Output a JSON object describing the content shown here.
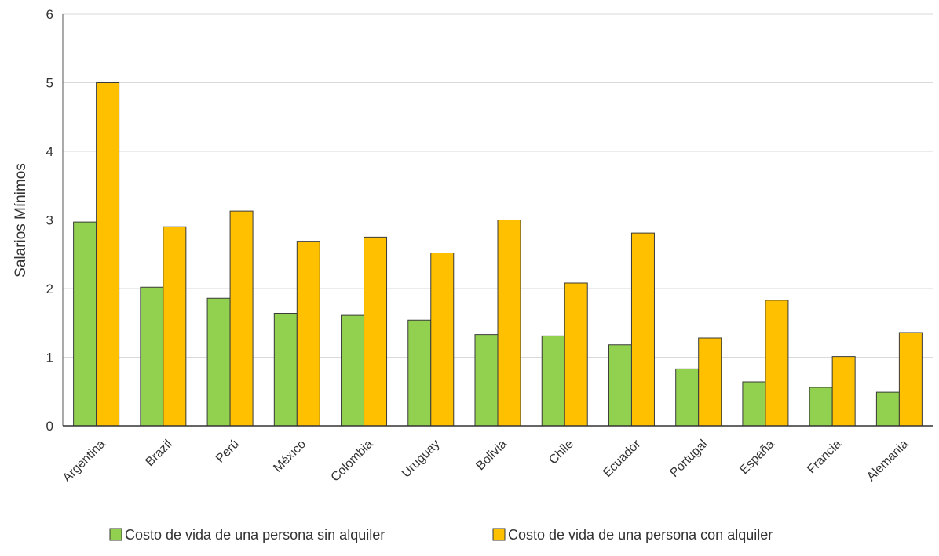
{
  "chart_data": {
    "type": "bar",
    "title": "",
    "xlabel": "",
    "ylabel": "Salarios Mínimos",
    "ylim": [
      0,
      6
    ],
    "yticks": [
      0,
      1,
      2,
      3,
      4,
      5,
      6
    ],
    "grid": true,
    "legend_position": "bottom",
    "categories": [
      "Argentina",
      "Brazil",
      "Perú",
      "México",
      "Colombia",
      "Uruguay",
      "Bolivia",
      "Chile",
      "Ecuador",
      "Portugal",
      "España",
      "Francia",
      "Alemania"
    ],
    "series": [
      {
        "name": "Costo de vida de una persona sin alquiler",
        "color": "#92d050",
        "values": [
          2.97,
          2.02,
          1.86,
          1.64,
          1.61,
          1.54,
          1.33,
          1.31,
          1.18,
          0.83,
          0.64,
          0.56,
          0.49
        ]
      },
      {
        "name": "Costo de vida de una persona con alquiler",
        "color": "#ffc000",
        "values": [
          5.0,
          2.9,
          3.13,
          2.69,
          2.75,
          2.52,
          3.0,
          2.08,
          2.81,
          1.28,
          1.83,
          1.01,
          1.36
        ]
      }
    ]
  }
}
